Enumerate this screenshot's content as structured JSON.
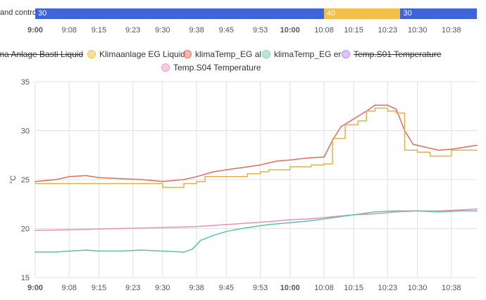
{
  "timeline": {
    "label": "and control",
    "segments": [
      {
        "label": "30",
        "color": "#3e64d6",
        "from": "9:00",
        "to": "10:08"
      },
      {
        "label": "40",
        "color": "#f2bf4b",
        "from": "10:08",
        "to": "10:26"
      },
      {
        "label": "30",
        "color": "#3e64d6",
        "from": "10:26",
        "to": "10:44"
      }
    ]
  },
  "x_ticks": [
    "9:00",
    "9:08",
    "9:15",
    "9:23",
    "9:30",
    "9:38",
    "9:45",
    "9:53",
    "10:00",
    "10:08",
    "10:15",
    "10:23",
    "10:30",
    "10:38"
  ],
  "bold_ticks": [
    "9:00",
    "10:00"
  ],
  "legend": [
    {
      "label": "ma Anlage Basti Liquid",
      "color": "#7a7a7a",
      "hidden": true,
      "dot": false
    },
    {
      "label": "Klimaanlage EG Liquid",
      "color": "#f2bf4b",
      "hidden": false,
      "dot": true
    },
    {
      "label": "klimaTemp_EG al",
      "color": "#e8776a",
      "hidden": false,
      "dot": true
    },
    {
      "label": "klimaTemp_EG er",
      "color": "#7cd3bb",
      "hidden": false,
      "dot": true
    },
    {
      "label": "Temp.S01 Temperature",
      "color": "#c18ef2",
      "hidden": true,
      "dot": true
    },
    {
      "label": "Temp.S04 Temperature",
      "color": "#f2a0c3",
      "hidden": false,
      "dot": true
    }
  ],
  "chart_data": {
    "type": "line",
    "ylabel": "°C",
    "ylim": [
      15,
      35
    ],
    "yticks": [
      15,
      20,
      25,
      30,
      35
    ],
    "xlim": [
      "9:00",
      "10:44"
    ],
    "grid": true,
    "series": [
      {
        "name": "Klimaanlage EG Liquid",
        "color": "#e3b04b",
        "step": true,
        "points": [
          [
            "9:00",
            24.6
          ],
          [
            "9:05",
            24.6
          ],
          [
            "9:10",
            24.6
          ],
          [
            "9:15",
            24.6
          ],
          [
            "9:20",
            24.6
          ],
          [
            "9:25",
            24.6
          ],
          [
            "9:30",
            24.2
          ],
          [
            "9:35",
            24.6
          ],
          [
            "9:38",
            24.8
          ],
          [
            "9:40",
            25.3
          ],
          [
            "9:45",
            25.3
          ],
          [
            "9:50",
            25.6
          ],
          [
            "9:53",
            25.8
          ],
          [
            "9:55",
            26.0
          ],
          [
            "10:00",
            26.3
          ],
          [
            "10:05",
            26.5
          ],
          [
            "10:08",
            26.6
          ],
          [
            "10:10",
            29.2
          ],
          [
            "10:13",
            30.6
          ],
          [
            "10:16",
            31.0
          ],
          [
            "10:18",
            32.0
          ],
          [
            "10:20",
            32.3
          ],
          [
            "10:23",
            32.0
          ],
          [
            "10:25",
            31.8
          ],
          [
            "10:27",
            28.0
          ],
          [
            "10:30",
            27.8
          ],
          [
            "10:33",
            27.4
          ],
          [
            "10:35",
            27.4
          ],
          [
            "10:38",
            28.0
          ],
          [
            "10:44",
            28.0
          ]
        ]
      },
      {
        "name": "klimaTemp_EG al",
        "color": "#e06c5e",
        "step": false,
        "points": [
          [
            "9:00",
            24.8
          ],
          [
            "9:05",
            25.0
          ],
          [
            "9:08",
            25.3
          ],
          [
            "9:12",
            25.4
          ],
          [
            "9:15",
            25.2
          ],
          [
            "9:20",
            25.1
          ],
          [
            "9:25",
            25.0
          ],
          [
            "9:30",
            24.8
          ],
          [
            "9:35",
            25.0
          ],
          [
            "9:38",
            25.3
          ],
          [
            "9:42",
            25.8
          ],
          [
            "9:45",
            26.0
          ],
          [
            "9:50",
            26.3
          ],
          [
            "9:53",
            26.5
          ],
          [
            "9:57",
            26.9
          ],
          [
            "10:00",
            27.0
          ],
          [
            "10:04",
            27.2
          ],
          [
            "10:08",
            27.3
          ],
          [
            "10:10",
            29.0
          ],
          [
            "10:12",
            30.4
          ],
          [
            "10:15",
            31.2
          ],
          [
            "10:18",
            32.0
          ],
          [
            "10:20",
            32.6
          ],
          [
            "10:23",
            32.6
          ],
          [
            "10:25",
            32.2
          ],
          [
            "10:27",
            30.0
          ],
          [
            "10:29",
            28.6
          ],
          [
            "10:32",
            28.3
          ],
          [
            "10:35",
            28.0
          ],
          [
            "10:38",
            28.1
          ],
          [
            "10:41",
            28.3
          ],
          [
            "10:44",
            28.5
          ]
        ]
      },
      {
        "name": "klimaTemp_EG er",
        "color": "#5cc4a4",
        "step": false,
        "points": [
          [
            "9:00",
            17.6
          ],
          [
            "9:05",
            17.6
          ],
          [
            "9:08",
            17.7
          ],
          [
            "9:12",
            17.8
          ],
          [
            "9:15",
            17.7
          ],
          [
            "9:20",
            17.7
          ],
          [
            "9:25",
            17.8
          ],
          [
            "9:30",
            17.7
          ],
          [
            "9:35",
            17.6
          ],
          [
            "9:37",
            17.9
          ],
          [
            "9:39",
            18.8
          ],
          [
            "9:42",
            19.3
          ],
          [
            "9:45",
            19.7
          ],
          [
            "9:50",
            20.1
          ],
          [
            "9:55",
            20.4
          ],
          [
            "10:00",
            20.6
          ],
          [
            "10:05",
            20.8
          ],
          [
            "10:10",
            21.1
          ],
          [
            "10:15",
            21.4
          ],
          [
            "10:20",
            21.7
          ],
          [
            "10:25",
            21.8
          ],
          [
            "10:30",
            21.8
          ],
          [
            "10:35",
            21.7
          ],
          [
            "10:40",
            21.8
          ],
          [
            "10:44",
            21.8
          ]
        ]
      },
      {
        "name": "Temp.S04 Temperature",
        "color": "#ea8fbd",
        "step": false,
        "points": [
          [
            "9:00",
            19.8
          ],
          [
            "9:10",
            19.9
          ],
          [
            "9:20",
            20.0
          ],
          [
            "9:30",
            20.1
          ],
          [
            "9:38",
            20.2
          ],
          [
            "9:45",
            20.4
          ],
          [
            "9:55",
            20.7
          ],
          [
            "10:00",
            20.9
          ],
          [
            "10:05",
            21.0
          ],
          [
            "10:10",
            21.2
          ],
          [
            "10:15",
            21.4
          ],
          [
            "10:20",
            21.5
          ],
          [
            "10:25",
            21.7
          ],
          [
            "10:30",
            21.8
          ],
          [
            "10:35",
            21.8
          ],
          [
            "10:40",
            21.9
          ],
          [
            "10:44",
            22.0
          ]
        ]
      }
    ]
  }
}
